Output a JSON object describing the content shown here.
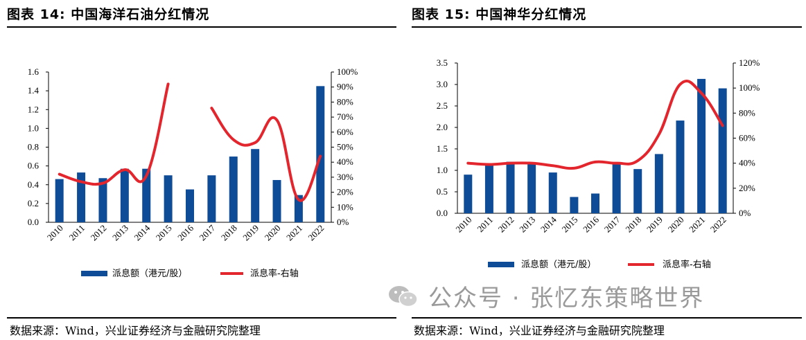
{
  "left": {
    "title": "图表 14:  中国海洋石油分红情况",
    "source": "数据来源：Wind，兴业证券经济与金融研究院整理"
  },
  "right": {
    "title": "图表 15:  中国神华分红情况",
    "source": "数据来源：Wind，兴业证券经济与金融研究院整理"
  },
  "watermark": {
    "text": "公众号 · 张忆东策略世界",
    "icon": "wechat-icon"
  },
  "chart_data": [
    {
      "type": "bar",
      "categories": [
        "2010",
        "2011",
        "2012",
        "2013",
        "2014",
        "2015",
        "2016",
        "2017",
        "2018",
        "2019",
        "2020",
        "2021",
        "2022"
      ],
      "series": [
        {
          "name": "派息额（港元/股）",
          "axis": "left",
          "kind": "bar",
          "color": "#0f4c97",
          "values": [
            0.46,
            0.53,
            0.47,
            0.57,
            0.57,
            0.5,
            0.35,
            0.5,
            0.7,
            0.78,
            0.45,
            0.29,
            1.45
          ]
        },
        {
          "name": "派息率-右轴",
          "axis": "right",
          "kind": "line",
          "color": "#e3262d",
          "values": [
            32,
            27,
            26,
            35,
            31,
            92,
            null,
            76,
            55,
            53,
            68,
            15,
            44
          ]
        }
      ],
      "ylim_left": [
        0,
        1.6
      ],
      "yticks_left": [
        "0.0",
        "0.2",
        "0.4",
        "0.6",
        "0.8",
        "1.0",
        "1.2",
        "1.4",
        "1.6"
      ],
      "ylim_right": [
        0,
        100
      ],
      "yticks_right": [
        "0%",
        "10%",
        "20%",
        "30%",
        "40%",
        "50%",
        "60%",
        "70%",
        "80%",
        "90%",
        "100%"
      ],
      "legend": "bottom"
    },
    {
      "type": "bar",
      "categories": [
        "2010",
        "2011",
        "2012",
        "2013",
        "2014",
        "2015",
        "2016",
        "2017",
        "2018",
        "2019",
        "2020",
        "2021",
        "2022"
      ],
      "series": [
        {
          "name": "派息额（港元/股）",
          "axis": "left",
          "kind": "bar",
          "color": "#0f4c97",
          "values": [
            0.9,
            1.15,
            1.2,
            1.15,
            0.95,
            0.38,
            0.46,
            1.15,
            1.03,
            1.38,
            2.16,
            3.13,
            2.91
          ]
        },
        {
          "name": "派息率-右轴",
          "axis": "right",
          "kind": "line",
          "color": "#e3262d",
          "values": [
            40,
            39,
            40,
            40,
            38,
            36,
            41,
            40,
            42,
            63,
            103,
            96,
            70
          ]
        }
      ],
      "ylim_left": [
        0,
        3.5
      ],
      "yticks_left": [
        "0.0",
        "0.5",
        "1.0",
        "1.5",
        "2.0",
        "2.5",
        "3.0",
        "3.5"
      ],
      "ylim_right": [
        0,
        120
      ],
      "yticks_right": [
        "0%",
        "20%",
        "40%",
        "60%",
        "80%",
        "100%",
        "120%"
      ],
      "legend": "bottom"
    }
  ]
}
